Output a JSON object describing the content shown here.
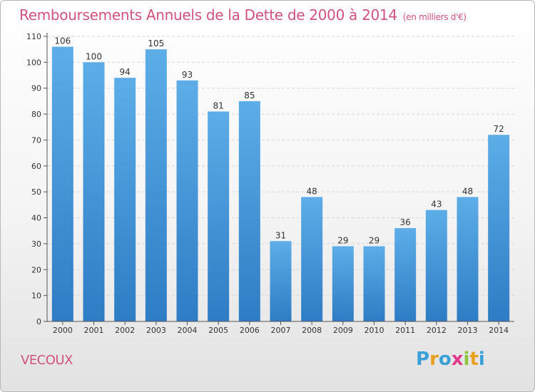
{
  "title": "Remboursements Annuels de la Dette de 2000 à 2014",
  "unit": "(en milliers d'€)",
  "commune": "VECOUX",
  "logo": {
    "letters": [
      "P",
      "r",
      "o",
      "x",
      "i",
      "t",
      "i"
    ],
    "colors": [
      "#3aa0d8",
      "#e8a020",
      "#3aa0d8",
      "#e03a8a",
      "#8cc63f",
      "#e8a020",
      "#3aa0d8"
    ]
  },
  "colors": {
    "bar_top": "#5dade8",
    "bar_bottom": "#2e7cc4",
    "text": "#333333",
    "accent": "#d2527e"
  },
  "chart_data": {
    "type": "bar",
    "title": "Remboursements Annuels de la Dette de 2000 à 2014",
    "categories": [
      "2000",
      "2001",
      "2002",
      "2003",
      "2004",
      "2005",
      "2006",
      "2007",
      "2008",
      "2009",
      "2010",
      "2011",
      "2012",
      "2013",
      "2014"
    ],
    "values": [
      106,
      100,
      94,
      105,
      93,
      81,
      85,
      31,
      48,
      29,
      29,
      36,
      43,
      48,
      72
    ],
    "ylim": [
      0,
      110
    ],
    "yticks": [
      0,
      10,
      20,
      30,
      40,
      50,
      60,
      70,
      80,
      90,
      100,
      110
    ],
    "grid": true,
    "xlabel": "",
    "ylabel": ""
  }
}
